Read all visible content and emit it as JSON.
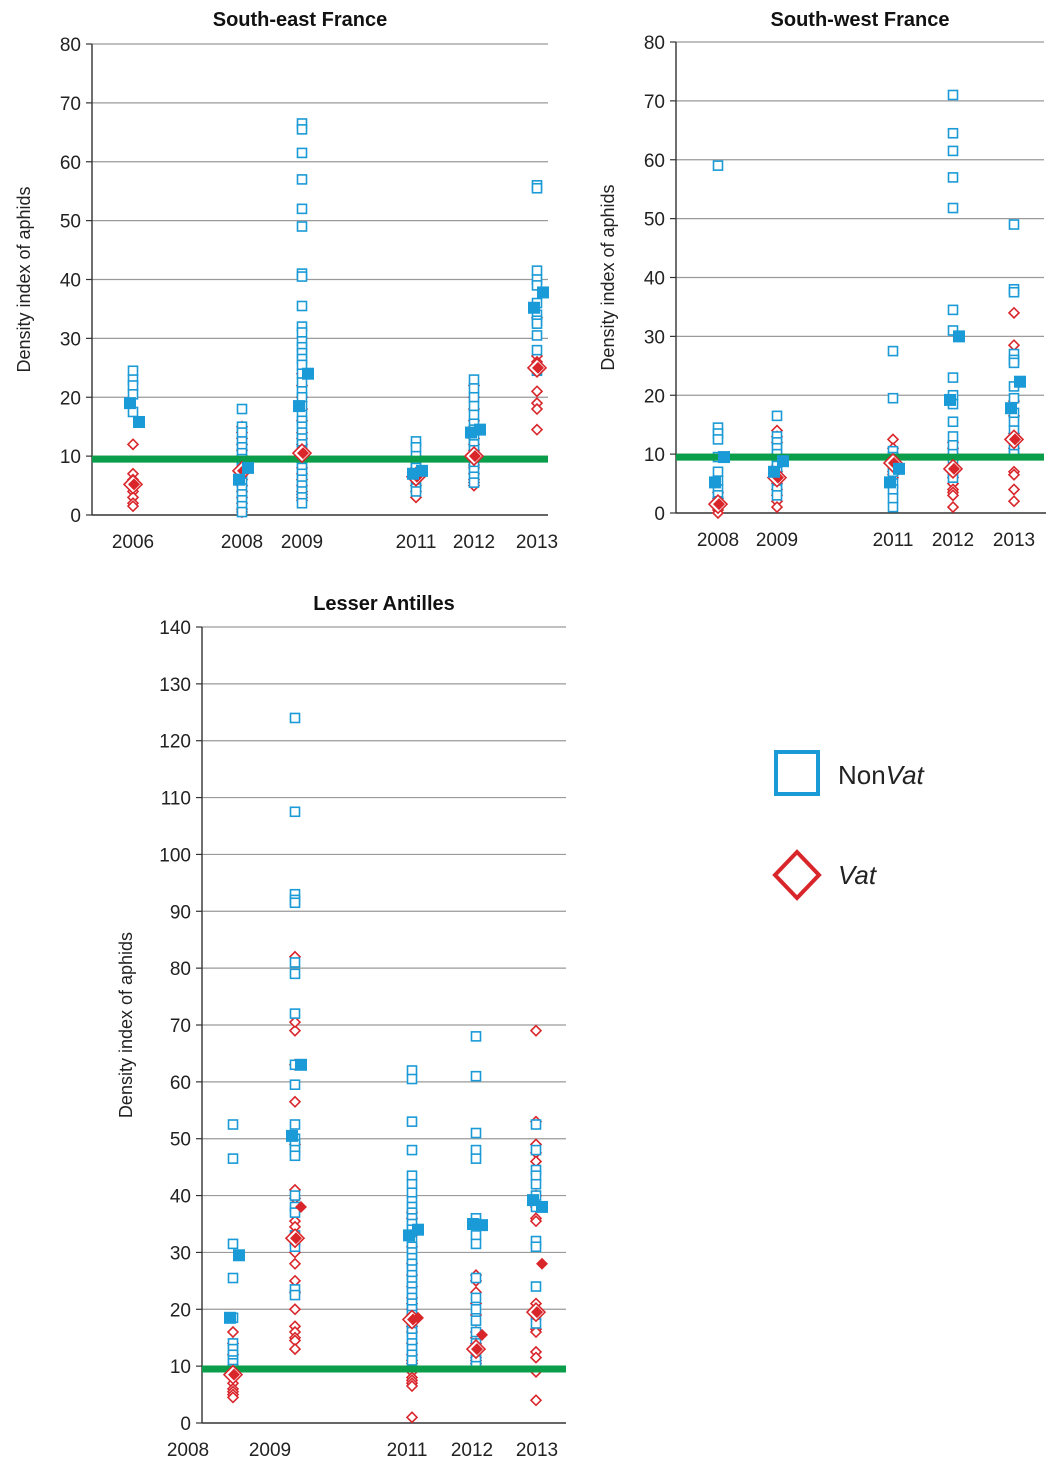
{
  "legend": {
    "nonvat_prefix": "Non",
    "nonvat_suffix": "Vat",
    "vat_label": "Vat"
  },
  "colors": {
    "nonvat": "#1a9ad6",
    "vat": "#d9262b",
    "threshold": "#0a9e4a",
    "grid": "#9a9a9a",
    "axis": "#333333"
  },
  "chart_data": [
    {
      "type": "scatter",
      "title": "South-east France",
      "ylabel": "Density index of aphids",
      "xlabel": "",
      "categories": [
        "2006",
        "2008",
        "2009",
        "2011",
        "2012",
        "2013"
      ],
      "ylim": [
        0,
        80
      ],
      "yticks": [
        0,
        10,
        20,
        30,
        40,
        50,
        60,
        70,
        80
      ],
      "threshold": 9.5,
      "grid": true,
      "series": [
        {
          "name": "NonVat",
          "values": [
            [
              24.5,
              23,
              22,
              20.5,
              17.5
            ],
            [
              18,
              15,
              14,
              12.5,
              11.5,
              10.5,
              9.5,
              9,
              8,
              7,
              6.5,
              5.5,
              4.5,
              3.5,
              2.5,
              1.5,
              0.5
            ],
            [
              66.5,
              65.5,
              61.5,
              57,
              52,
              49,
              41,
              40.5,
              35.5,
              32,
              31,
              29.5,
              28.5,
              27.5,
              26.5,
              25.5,
              24,
              22.5,
              21,
              20,
              18.5,
              17,
              16,
              15,
              14,
              13,
              12,
              11,
              10,
              9,
              8,
              7,
              6,
              5,
              4,
              3,
              2
            ],
            [
              12.5,
              11.5,
              10,
              9,
              8,
              7,
              6.5,
              5.5,
              4.5,
              4
            ],
            [
              23,
              21.5,
              20,
              18.5,
              17,
              15.5,
              14.5,
              13,
              12,
              11,
              10,
              9,
              8.5,
              7.5,
              6.5,
              5.5
            ],
            [
              56,
              55.5,
              41.5,
              40,
              39,
              36,
              34,
              33,
              32.5,
              30.5,
              28,
              25,
              24.5
            ]
          ],
          "means": [
            [
              19,
              15.8
            ],
            [
              6,
              8
            ],
            [
              18.5,
              24
            ],
            [
              7,
              7.5
            ],
            [
              14,
              14.5
            ],
            [
              35.2,
              37.8
            ]
          ]
        },
        {
          "name": "Vat",
          "values": [
            [
              12,
              7,
              6,
              5,
              4,
              3,
              2,
              1.5
            ],
            [
              15,
              14,
              13,
              12,
              11,
              10,
              9,
              8,
              7,
              6,
              5,
              4,
              3,
              2,
              1,
              0.5
            ],
            [
              24,
              22,
              20,
              18,
              16,
              14,
              13,
              12,
              11,
              10,
              9.5,
              9,
              8,
              7,
              6,
              5,
              4,
              3.5,
              3,
              2.5
            ],
            [
              10,
              9,
              8,
              7,
              6,
              5,
              4,
              3
            ],
            [
              22,
              20,
              18,
              16,
              15,
              13,
              12,
              11,
              10,
              9,
              8.5,
              8,
              7,
              6,
              5.5,
              5
            ],
            [
              33.5,
              27,
              26,
              25,
              24.5,
              21,
              19,
              18,
              14.5
            ]
          ],
          "means": [
            5.2,
            7.5,
            10.5,
            6.5,
            10,
            25
          ]
        }
      ]
    },
    {
      "type": "scatter",
      "title": "South-west France",
      "ylabel": "Density index of aphids",
      "xlabel": "",
      "categories": [
        "2008",
        "2009",
        "2011",
        "2012",
        "2013"
      ],
      "ylim": [
        0,
        80
      ],
      "yticks": [
        0,
        10,
        20,
        30,
        40,
        50,
        60,
        70,
        80
      ],
      "threshold": 9.5,
      "grid": true,
      "series": [
        {
          "name": "NonVat",
          "values": [
            [
              59,
              14.5,
              13.5,
              12.5,
              9.5,
              7,
              5.5,
              4,
              3,
              2,
              1.5
            ],
            [
              16.5,
              13,
              12,
              11,
              10,
              9,
              8,
              7,
              6,
              5,
              4,
              3
            ],
            [
              27.5,
              19.5,
              10.5,
              9.5,
              8,
              7,
              5,
              4,
              2.5,
              1
            ],
            [
              71,
              64.5,
              61.5,
              57,
              51.8,
              34.5,
              31,
              23,
              20,
              18.5,
              15.5,
              13,
              11.5,
              10,
              8.5,
              7,
              6
            ],
            [
              49,
              38,
              37.5,
              27,
              26,
              25.5,
              21.5,
              19.5,
              17,
              15.5,
              14,
              12.5,
              11,
              10
            ]
          ],
          "means": [
            [
              5.2,
              9.5
            ],
            [
              7,
              8.8
            ],
            [
              5.2,
              7.5
            ],
            [
              19.2,
              30
            ],
            [
              17.8,
              22.3
            ]
          ]
        },
        {
          "name": "Vat",
          "values": [
            [
              3.5,
              2.5,
              1.5,
              1,
              0.5,
              0
            ],
            [
              14,
              13,
              12,
              10,
              9,
              8,
              7,
              6,
              5,
              4,
              3,
              2,
              1
            ],
            [
              12.5,
              11,
              10,
              9,
              8,
              7,
              6.5,
              6
            ],
            [
              12,
              11,
              10,
              9,
              8,
              7,
              6,
              5,
              4,
              3.5,
              3,
              1
            ],
            [
              34,
              28.5,
              19,
              16.5,
              13.5,
              12,
              11,
              7,
              6.5,
              4,
              2
            ]
          ],
          "means": [
            1.5,
            6,
            8.5,
            7.5,
            12.5
          ]
        }
      ]
    },
    {
      "type": "scatter",
      "title": "Lesser Antilles",
      "ylabel": "Density index of aphids",
      "xlabel": "",
      "categories": [
        "2008",
        "2009",
        "2011",
        "2012",
        "2013"
      ],
      "ylim": [
        0,
        140
      ],
      "yticks": [
        0,
        10,
        20,
        30,
        40,
        50,
        60,
        70,
        80,
        90,
        100,
        110,
        120,
        130,
        140
      ],
      "threshold": 9.5,
      "grid": true,
      "series": [
        {
          "name": "NonVat",
          "values": [
            [
              52.5,
              46.5,
              31.5,
              25.5,
              18.5,
              14,
              13,
              12,
              11,
              10.5,
              9.5,
              9
            ],
            [
              124,
              107.5,
              93,
              92,
              91.5,
              81,
              79,
              72,
              63,
              59.5,
              52.5,
              50,
              49,
              48,
              47,
              40,
              38,
              37,
              33,
              32,
              31,
              23.5,
              22.5
            ],
            [
              62,
              60.5,
              53,
              48,
              43.5,
              42,
              40.5,
              39,
              38,
              37,
              36,
              35,
              34,
              32,
              31,
              30,
              29,
              28,
              27,
              26,
              25,
              24,
              23,
              22,
              21,
              20,
              19,
              18,
              17,
              16,
              15,
              14,
              13,
              12,
              11
            ],
            [
              68,
              61,
              51,
              48,
              46.5,
              36,
              35,
              33,
              31.5,
              25.5,
              22,
              20,
              18,
              16,
              14,
              12,
              11,
              10
            ],
            [
              52.5,
              48,
              44.5,
              43.5,
              42,
              40,
              38,
              32,
              31,
              24,
              19,
              17.5
            ]
          ],
          "means": [
            [
              18.5,
              29.5
            ],
            [
              50.5,
              63
            ],
            [
              33,
              34
            ],
            [
              35,
              34.8
            ],
            [
              39.2,
              38
            ]
          ]
        },
        {
          "name": "Vat",
          "values": [
            [
              16,
              14,
              12,
              10,
              9,
              8,
              7,
              6,
              5.5,
              5,
              4.5
            ],
            [
              82,
              69,
              70.5,
              63,
              56.5,
              49,
              41,
              39.5,
              35.5,
              34.5,
              33,
              30,
              28,
              25,
              23,
              20,
              17,
              16,
              15,
              14.5,
              13
            ],
            [
              37,
              36,
              33,
              31,
              28,
              26,
              24,
              22,
              21,
              20,
              19,
              17,
              16,
              14,
              12,
              11,
              10.5,
              10,
              9,
              8,
              7.5,
              7,
              6.5,
              1
            ],
            [
              26,
              25,
              23,
              21,
              19,
              16,
              15,
              14,
              13.5,
              12.5,
              11.5,
              11,
              10.5,
              10
            ],
            [
              69,
              53,
              49,
              47.5,
              46,
              40,
              38,
              36,
              35.5,
              21,
              20,
              16.5,
              16,
              12.5,
              11.5,
              9,
              4
            ]
          ],
          "means": [
            8.5,
            32.5,
            18.2,
            13,
            19.5
          ],
          "extra_points": [
            [
              1,
              38
            ],
            [
              2,
              18.5
            ],
            [
              3,
              15.5
            ],
            [
              4,
              28
            ]
          ]
        }
      ]
    }
  ]
}
